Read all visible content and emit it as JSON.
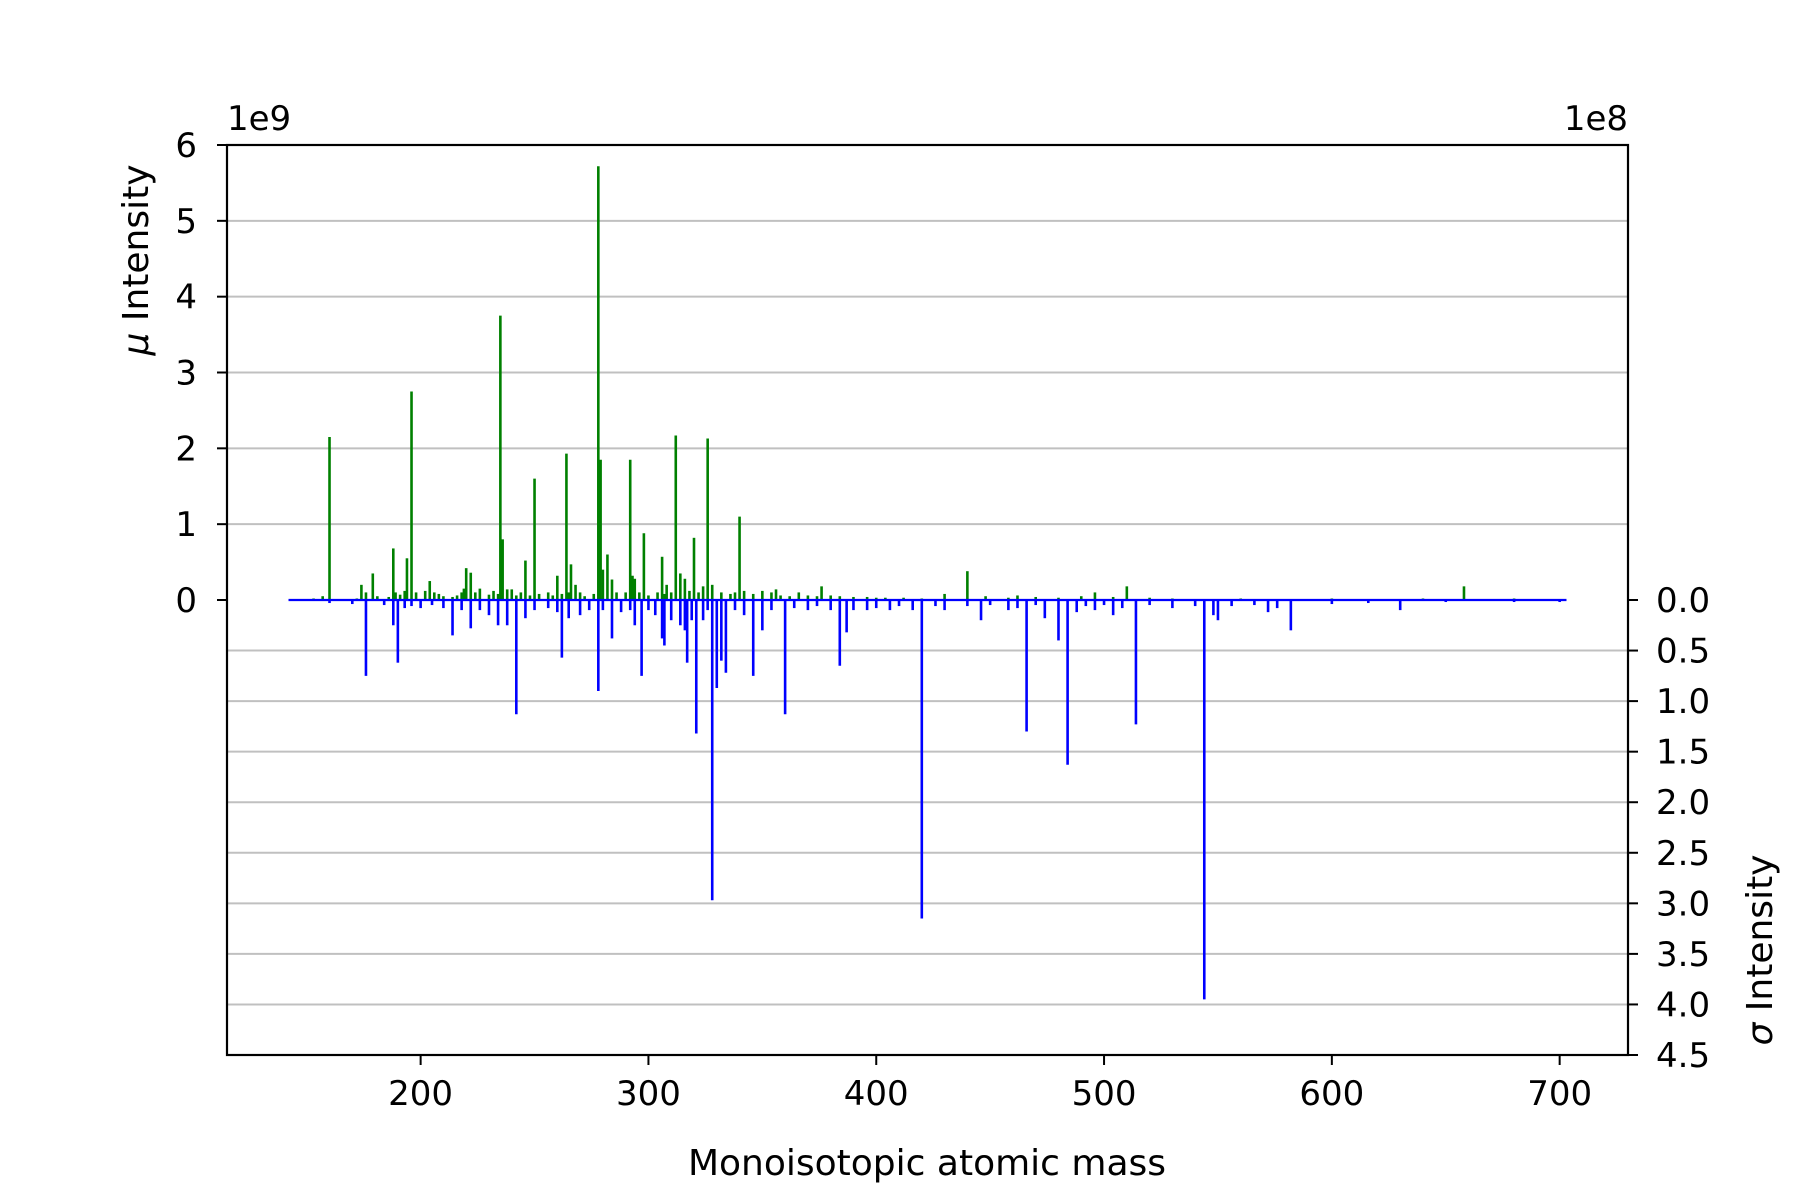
{
  "chart_data": {
    "type": "bar",
    "subtype": "mirrored stick spectrum (mu up on left axis, sigma down on right axis)",
    "xlabel": "Monoisotopic atomic mass",
    "ylabel_left": "Intensity",
    "ylabel_left_symbol": "μ",
    "ylabel_right": "Intensity",
    "ylabel_right_symbol": "σ",
    "offset_left": "1e9",
    "offset_right": "1e8",
    "xlim": [
      115,
      730
    ],
    "ylim_left": [
      0,
      6
    ],
    "ylim_right": [
      0,
      4.5
    ],
    "xticks": [
      200,
      300,
      400,
      500,
      600,
      700
    ],
    "yticks_left": [
      "0",
      "1",
      "2",
      "3",
      "4",
      "5",
      "6"
    ],
    "yticks_right": [
      "0.0",
      "0.5",
      "1.0",
      "1.5",
      "2.0",
      "2.5",
      "3.0",
      "3.5",
      "4.0",
      "4.5"
    ],
    "grid": true,
    "baseline_range": [
      142,
      703
    ],
    "series": [
      {
        "symbol": "μ",
        "color": "#008000",
        "direction": "up",
        "unit_scale": "1e9",
        "x": [
          153,
          157,
          160,
          172,
          174,
          176,
          179,
          181,
          186,
          188,
          189,
          191,
          193,
          194,
          196,
          198,
          202,
          204,
          206,
          208,
          210,
          214,
          216,
          218,
          219,
          220,
          222,
          224,
          226,
          230,
          232,
          234,
          235,
          236,
          238,
          240,
          242,
          244,
          246,
          248,
          250,
          252,
          256,
          258,
          260,
          262,
          264,
          265,
          266,
          268,
          270,
          272,
          276,
          278,
          279,
          280,
          282,
          284,
          286,
          290,
          292,
          293,
          294,
          296,
          298,
          300,
          304,
          306,
          307,
          308,
          310,
          312,
          314,
          316,
          318,
          320,
          322,
          324,
          326,
          328,
          332,
          336,
          338,
          340,
          342,
          346,
          350,
          354,
          356,
          358,
          362,
          366,
          370,
          374,
          376,
          380,
          384,
          390,
          396,
          400,
          404,
          412,
          420,
          430,
          440,
          448,
          458,
          462,
          470,
          480,
          490,
          496,
          504,
          510,
          520,
          530,
          560,
          600,
          640,
          658,
          680
        ],
        "values": [
          0.02,
          0.05,
          2.15,
          0.02,
          0.2,
          0.1,
          0.35,
          0.05,
          0.04,
          0.68,
          0.1,
          0.07,
          0.12,
          0.55,
          2.75,
          0.1,
          0.12,
          0.25,
          0.1,
          0.08,
          0.05,
          0.04,
          0.06,
          0.1,
          0.15,
          0.42,
          0.36,
          0.1,
          0.15,
          0.07,
          0.12,
          0.08,
          3.75,
          0.8,
          0.14,
          0.14,
          0.06,
          0.1,
          0.52,
          0.06,
          1.6,
          0.08,
          0.1,
          0.06,
          0.32,
          0.08,
          1.93,
          0.1,
          0.47,
          0.2,
          0.1,
          0.05,
          0.08,
          5.72,
          1.85,
          0.4,
          0.6,
          0.27,
          0.1,
          0.1,
          1.85,
          0.32,
          0.28,
          0.1,
          0.88,
          0.06,
          0.1,
          0.57,
          0.08,
          0.2,
          0.1,
          2.17,
          0.35,
          0.28,
          0.12,
          0.82,
          0.1,
          0.18,
          2.13,
          0.2,
          0.1,
          0.08,
          0.1,
          1.1,
          0.12,
          0.08,
          0.12,
          0.1,
          0.14,
          0.06,
          0.05,
          0.1,
          0.06,
          0.05,
          0.18,
          0.06,
          0.05,
          0.04,
          0.04,
          0.03,
          0.03,
          0.03,
          0.02,
          0.08,
          0.38,
          0.05,
          0.03,
          0.06,
          0.04,
          0.03,
          0.05,
          0.1,
          0.04,
          0.18,
          0.03,
          0.02,
          0.02,
          0.02,
          0.02,
          0.18,
          0.02
        ]
      },
      {
        "symbol": "σ",
        "color": "#0000ff",
        "direction": "down",
        "unit_scale": "1e8",
        "x": [
          160,
          170,
          176,
          184,
          188,
          190,
          193,
          196,
          200,
          205,
          210,
          214,
          218,
          222,
          226,
          230,
          234,
          238,
          242,
          246,
          250,
          256,
          260,
          262,
          265,
          270,
          274,
          278,
          280,
          284,
          288,
          292,
          294,
          297,
          300,
          303,
          306,
          307,
          310,
          314,
          316,
          317,
          319,
          321,
          324,
          326,
          328,
          330,
          332,
          334,
          338,
          342,
          346,
          350,
          354,
          360,
          364,
          370,
          374,
          380,
          384,
          387,
          390,
          396,
          400,
          406,
          410,
          416,
          420,
          426,
          430,
          440,
          446,
          450,
          458,
          462,
          466,
          470,
          474,
          480,
          484,
          488,
          492,
          496,
          500,
          504,
          508,
          514,
          520,
          530,
          540,
          544,
          548,
          550,
          556,
          566,
          572,
          576,
          582,
          600,
          616,
          630,
          650,
          680,
          700
        ],
        "values": [
          0.03,
          0.04,
          0.75,
          0.05,
          0.25,
          0.62,
          0.08,
          0.06,
          0.08,
          0.05,
          0.08,
          0.35,
          0.1,
          0.28,
          0.1,
          0.15,
          0.25,
          0.25,
          1.13,
          0.18,
          0.1,
          0.08,
          0.12,
          0.57,
          0.18,
          0.15,
          0.1,
          0.9,
          0.1,
          0.38,
          0.12,
          0.1,
          0.25,
          0.75,
          0.1,
          0.15,
          0.38,
          0.45,
          0.2,
          0.25,
          0.3,
          0.62,
          0.2,
          1.32,
          0.2,
          0.1,
          2.97,
          0.87,
          0.6,
          0.72,
          0.1,
          0.15,
          0.75,
          0.3,
          0.1,
          1.13,
          0.08,
          0.1,
          0.06,
          0.1,
          0.65,
          0.32,
          0.1,
          0.1,
          0.08,
          0.1,
          0.06,
          0.1,
          3.15,
          0.06,
          0.1,
          0.06,
          0.2,
          0.05,
          0.1,
          0.08,
          1.3,
          0.05,
          0.18,
          0.4,
          1.63,
          0.12,
          0.06,
          0.1,
          0.05,
          0.15,
          0.08,
          1.23,
          0.05,
          0.08,
          0.06,
          3.95,
          0.15,
          0.2,
          0.06,
          0.05,
          0.12,
          0.08,
          0.3,
          0.04,
          0.03,
          0.1,
          0.02,
          0.02,
          0.02
        ]
      }
    ]
  }
}
